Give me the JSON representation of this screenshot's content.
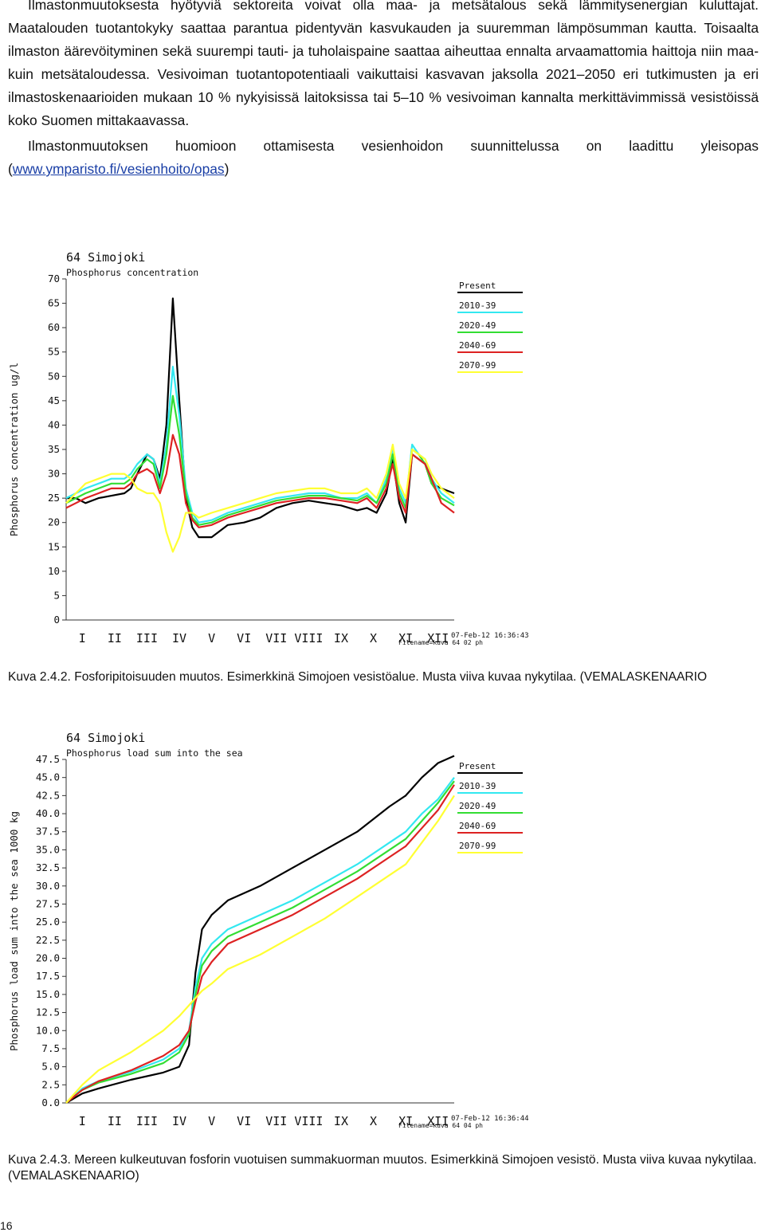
{
  "text": {
    "para1_p1": "Ilmastonmuutoksesta hyötyviä sektoreita voivat olla maa- ja metsätalous sekä lämmitysenergian kuluttajat. Maatalouden tuotantokyky saattaa parantua pidentyvän kasvukauden ja suuremman lämpösumman kautta. Toisaalta ilmaston äärevöityminen sekä suurempi tauti- ja tuholaispaine saattaa aiheuttaa ennalta arvaamattomia haittoja niin maa- kuin metsätaloudessa. Vesivoiman tuotantopotentiaali vaikuttaisi kasvavan jaksolla 2021–2050 eri tutkimusten ja eri ilmastoskenaarioiden mukaan 10 % nykyisissä laitoksissa tai 5–10 % vesivoiman kannalta merkittävimmissä vesistöissä koko Suomen mittakaavassa.",
    "para2_text": "Ilmastonmuutoksen huomioon ottamisesta vesienhoidon suunnittelussa on laadittu yleisopas (",
    "para2_link": "www.ymparisto.fi/vesienhoito/opas",
    "para2_close": ")",
    "caption1": "Kuva 2.4.2. Fosforipitoisuuden muutos. Esimerkkinä Simojoen vesistöalue. Musta viiva kuvaa nykytilaa. (VEMALASKENAARIO",
    "caption2": "Kuva 2.4.3. Mereen kulkeutuvan fosforin vuotuisen summakuorman muutos. Esimerkkinä Simojoen vesistö. Musta viiva kuvaa nykytilaa. (VEMALASKENAARIO)",
    "page_number": "16"
  },
  "chart_data": [
    {
      "type": "line",
      "title": "64 Simojoki",
      "subtitle": "Phosphorus concentration",
      "ylabel": "Phosphorus concentration ug/l",
      "ylim": [
        0,
        70
      ],
      "yticks": [
        "0",
        "5",
        "10",
        "15",
        "20",
        "25",
        "30",
        "35",
        "40",
        "45",
        "50",
        "55",
        "60",
        "65",
        "70"
      ],
      "months": [
        "I",
        "II",
        "III",
        "IV",
        "V",
        "VI",
        "VII",
        "VIII",
        "IX",
        "X",
        "XI",
        "XII"
      ],
      "x": [
        0,
        0.3,
        0.6,
        1,
        1.4,
        1.8,
        2,
        2.2,
        2.5,
        2.7,
        2.9,
        3.1,
        3.3,
        3.5,
        3.7,
        3.9,
        4.1,
        4.5,
        5,
        5.5,
        6,
        6.5,
        7,
        7.5,
        8,
        8.5,
        9,
        9.3,
        9.6,
        9.9,
        10.1,
        10.3,
        10.5,
        10.7,
        10.9,
        11.1,
        11.3,
        11.6,
        12
      ],
      "footer1": "07-Feb-12 16:36:43",
      "footer2": "Filename=kuva 64 02 ph",
      "series": [
        {
          "name": "Present",
          "color": "#000000",
          "values": [
            25,
            25,
            24,
            25,
            25.5,
            26,
            27,
            30,
            34,
            33,
            29,
            40,
            66,
            45,
            25,
            19,
            17,
            17,
            19.5,
            20,
            21,
            23,
            24,
            24.5,
            24,
            23.5,
            22.5,
            23,
            22,
            26,
            33,
            24,
            20,
            34,
            33,
            32,
            28,
            27,
            26
          ]
        },
        {
          "name": "2010-39",
          "color": "#33e8f0",
          "values": [
            25,
            26,
            27,
            28,
            29,
            29,
            30,
            32,
            34,
            33,
            28,
            36,
            52,
            42,
            27,
            22,
            20,
            20.5,
            22,
            23,
            24,
            25,
            25.5,
            26,
            26,
            25,
            25,
            26,
            24,
            29,
            35,
            27,
            24,
            36,
            34,
            33,
            29,
            26,
            24
          ]
        },
        {
          "name": "2020-49",
          "color": "#33dd33",
          "values": [
            24,
            25,
            26,
            27,
            28,
            28,
            29,
            31,
            33,
            32,
            27,
            34,
            46,
            38,
            26,
            21,
            19.5,
            20,
            21.5,
            22.5,
            23.5,
            24.5,
            25,
            25.5,
            25.5,
            25,
            24.5,
            25.5,
            24,
            28,
            34,
            26,
            23,
            35,
            34,
            32,
            28,
            25,
            23.5
          ]
        },
        {
          "name": "2040-69",
          "color": "#dd2222",
          "values": [
            23,
            24,
            25,
            26,
            27,
            27,
            28,
            30,
            31,
            30,
            26,
            30,
            38,
            34,
            24,
            20.5,
            19,
            19.5,
            21,
            22,
            23,
            24,
            24.5,
            25,
            25,
            24.5,
            24,
            25,
            23,
            27,
            32,
            25,
            22,
            34,
            33,
            32,
            29,
            24,
            22
          ]
        },
        {
          "name": "2070-99",
          "color": "#ffff33",
          "values": [
            24,
            26,
            28,
            29,
            30,
            30,
            29,
            27,
            26,
            26,
            24,
            18,
            14,
            17,
            22,
            22,
            21,
            22,
            23,
            24,
            25,
            26,
            26.5,
            27,
            27,
            26,
            26,
            27,
            25,
            30,
            36,
            28,
            25,
            35,
            34,
            33,
            30,
            27,
            25
          ]
        }
      ]
    },
    {
      "type": "line",
      "title": "64 Simojoki",
      "subtitle": "Phosphorus load sum into the sea",
      "ylabel": "Phosphorus load sum into the sea 1000 kg",
      "ylim": [
        0,
        47.5
      ],
      "yticks": [
        "0.0",
        "2.5",
        "5.0",
        "7.5",
        "10.0",
        "12.5",
        "15.0",
        "17.5",
        "20.0",
        "22.5",
        "25.0",
        "27.5",
        "30.0",
        "32.5",
        "35.0",
        "37.5",
        "40.0",
        "42.5",
        "45.0",
        "47.5"
      ],
      "months": [
        "I",
        "II",
        "III",
        "IV",
        "V",
        "VI",
        "VII",
        "VIII",
        "IX",
        "X",
        "XI",
        "XII"
      ],
      "x": [
        0,
        0.5,
        1,
        2,
        3,
        3.5,
        3.8,
        4,
        4.2,
        4.5,
        5,
        6,
        7,
        8,
        9,
        10,
        10.5,
        11,
        11.5,
        12
      ],
      "footer1": "07-Feb-12 16:36:44",
      "footer2": "Filename=kuva 64 04 ph",
      "series": [
        {
          "name": "Present",
          "color": "#000000",
          "values": [
            0,
            1.3,
            2,
            3.2,
            4.2,
            5,
            8,
            18,
            24,
            26,
            28,
            30,
            32.5,
            35,
            37.5,
            41,
            42.5,
            45,
            47,
            48
          ]
        },
        {
          "name": "2010-39",
          "color": "#33e8f0",
          "values": [
            0,
            2,
            3,
            4.3,
            6,
            7.5,
            10,
            16,
            20,
            22,
            24,
            26,
            28,
            30.5,
            33,
            36,
            37.5,
            40,
            42,
            45
          ]
        },
        {
          "name": "2020-49",
          "color": "#33dd33",
          "values": [
            0,
            1.8,
            2.8,
            4,
            5.5,
            7,
            9.5,
            15,
            19,
            21,
            23,
            25,
            27,
            29.5,
            32,
            35,
            36.5,
            39,
            41.5,
            44.5
          ]
        },
        {
          "name": "2040-69",
          "color": "#dd2222",
          "values": [
            0,
            1.8,
            3,
            4.5,
            6.5,
            8,
            10,
            14,
            17.5,
            19.5,
            22,
            24,
            26,
            28.5,
            31,
            34,
            35.5,
            38,
            40.5,
            44
          ]
        },
        {
          "name": "2070-99",
          "color": "#ffff33",
          "values": [
            0,
            2.5,
            4.5,
            7,
            10,
            12,
            13.5,
            14.5,
            15.5,
            16.5,
            18.5,
            20.5,
            23,
            25.5,
            28.5,
            31.5,
            33,
            36,
            39,
            42.5
          ]
        }
      ]
    }
  ]
}
